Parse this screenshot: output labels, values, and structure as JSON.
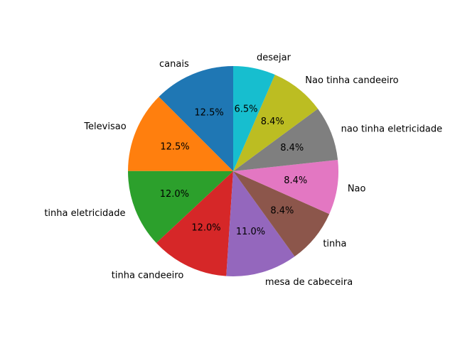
{
  "chart_data": {
    "type": "pie",
    "start_angle_deg": 90,
    "direction": "counterclockwise",
    "slices": [
      {
        "label": "canais",
        "percent": 12.5,
        "display": "12.5%",
        "color": "#1f77b4"
      },
      {
        "label": "Televisao",
        "percent": 12.5,
        "display": "12.5%",
        "color": "#ff7f0e"
      },
      {
        "label": "tinha eletricidade",
        "percent": 12.0,
        "display": "12.0%",
        "color": "#2ca02c"
      },
      {
        "label": "tinha candeeiro",
        "percent": 12.0,
        "display": "12.0%",
        "color": "#d62728"
      },
      {
        "label": "mesa de cabeceira",
        "percent": 11.0,
        "display": "11.0%",
        "color": "#9467bd"
      },
      {
        "label": "tinha",
        "percent": 8.4,
        "display": "8.4%",
        "color": "#8c564b"
      },
      {
        "label": "Nao",
        "percent": 8.4,
        "display": "8.4%",
        "color": "#e377c2"
      },
      {
        "label": "nao tinha eletricidade",
        "percent": 8.4,
        "display": "8.4%",
        "color": "#7f7f7f"
      },
      {
        "label": "Nao tinha candeeiro",
        "percent": 8.4,
        "display": "8.4%",
        "color": "#bcbd22"
      },
      {
        "label": "desejar",
        "percent": 6.5,
        "display": "6.5%",
        "color": "#17becf"
      }
    ]
  }
}
